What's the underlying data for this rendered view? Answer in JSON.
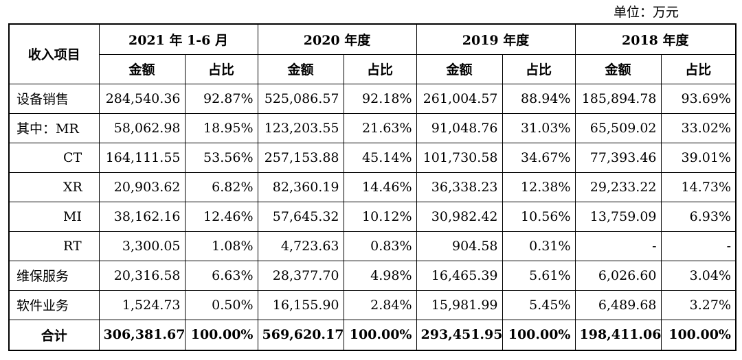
{
  "unit_note": "单位：万元",
  "table": {
    "row_header": "收入项目",
    "periods": [
      "2021 年 1-6 月",
      "2020 年度",
      "2019 年度",
      "2018 年度"
    ],
    "sub_headers": {
      "amount": "金额",
      "ratio": "占比"
    },
    "rows": [
      {
        "label": "设备销售",
        "cells": [
          "284,540.36",
          "92.87%",
          "525,086.57",
          "92.18%",
          "261,004.57",
          "88.94%",
          "185,894.78",
          "93.69%"
        ]
      },
      {
        "label": "其中：MR",
        "cells": [
          "58,062.98",
          "18.95%",
          "123,203.55",
          "21.63%",
          "91,048.76",
          "31.03%",
          "65,509.02",
          "33.02%"
        ]
      },
      {
        "label": "CT",
        "cells": [
          "164,111.55",
          "53.56%",
          "257,153.88",
          "45.14%",
          "101,730.58",
          "34.67%",
          "77,393.46",
          "39.01%"
        ]
      },
      {
        "label": "XR",
        "cells": [
          "20,903.62",
          "6.82%",
          "82,360.19",
          "14.46%",
          "36,338.23",
          "12.38%",
          "29,233.22",
          "14.73%"
        ]
      },
      {
        "label": "MI",
        "cells": [
          "38,162.16",
          "12.46%",
          "57,645.32",
          "10.12%",
          "30,982.42",
          "10.56%",
          "13,759.09",
          "6.93%"
        ]
      },
      {
        "label": "RT",
        "cells": [
          "3,300.05",
          "1.08%",
          "4,723.63",
          "0.83%",
          "904.58",
          "0.31%",
          "-",
          "-"
        ]
      },
      {
        "label": "维保服务",
        "cells": [
          "20,316.58",
          "6.63%",
          "28,377.70",
          "4.98%",
          "16,465.39",
          "5.61%",
          "6,026.60",
          "3.04%"
        ]
      },
      {
        "label": "软件业务",
        "cells": [
          "1,524.73",
          "0.50%",
          "16,155.90",
          "2.84%",
          "15,981.99",
          "5.45%",
          "6,489.68",
          "3.27%"
        ]
      },
      {
        "label": "合计",
        "cells": [
          "306,381.67",
          "100.00%",
          "569,620.17",
          "100.00%",
          "293,451.95",
          "100.00%",
          "198,411.06",
          "100.00%"
        ]
      }
    ]
  }
}
